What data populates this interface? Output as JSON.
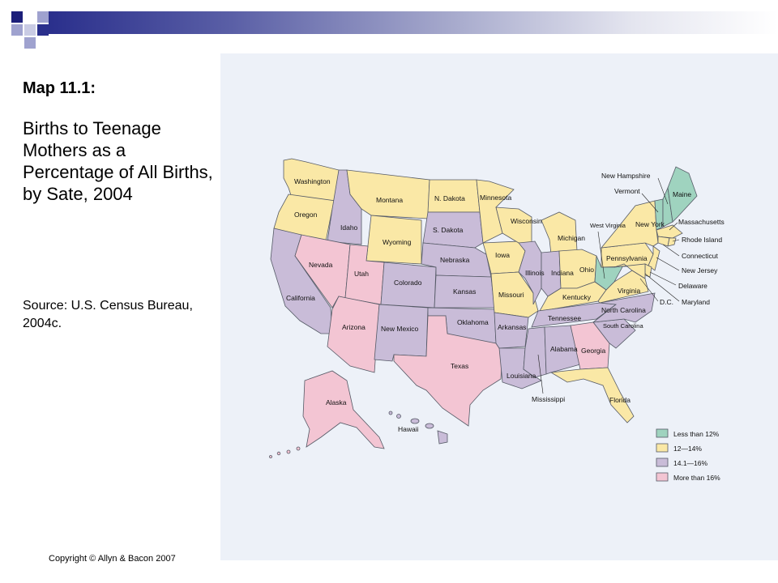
{
  "slide": {
    "title": "Map 11.1:",
    "subtitle": "Births to Teenage Mothers as a Percentage of All Births, by Sate, 2004",
    "source": "Source: U.S. Census Bureau, 2004c.",
    "copyright": "Copyright © Allyn & Bacon 2007"
  },
  "legend": [
    {
      "label": "Less than 12%",
      "color": "#9fd3bf"
    },
    {
      "label": "12—14%",
      "color": "#fae8a6"
    },
    {
      "label": "14.1—16%",
      "color": "#c9bcd8"
    },
    {
      "label": "More than 16%",
      "color": "#f3c5d3"
    }
  ],
  "states": {
    "washington": "Washington",
    "oregon": "Oregon",
    "california": "California",
    "idaho": "Idaho",
    "nevada": "Nevada",
    "montana": "Montana",
    "wyoming": "Wyoming",
    "utah": "Utah",
    "arizona": "Arizona",
    "colorado": "Colorado",
    "new_mexico": "New  Mexico",
    "n_dakota": "N. Dakota",
    "s_dakota": "S. Dakota",
    "nebraska": "Nebraska",
    "kansas": "Kansas",
    "oklahoma": "Oklahoma",
    "texas": "Texas",
    "minnesota": "Minnesota",
    "iowa": "Iowa",
    "missouri": "Missouri",
    "arkansas": "Arkansas",
    "louisiana": "Louisiana",
    "wisconsin": "Wisconsin",
    "illinois": "Illinois",
    "michigan": "Michigan",
    "indiana": "Indiana",
    "ohio": "Ohio",
    "kentucky": "Kentucky",
    "tennessee": "Tennessee",
    "mississippi": "Mississippi",
    "alabama": "Alabama",
    "georgia": "Georgia",
    "florida": "Florida",
    "south_carolina": "South Carolina",
    "north_carolina": "North  Carolina",
    "virginia": "Virginia",
    "west_virginia": "West Virginia",
    "pennsylvania": "Pennsylvania",
    "new_york": "New York",
    "vermont": "Vermont",
    "new_hampshire": "New  Hampshire",
    "maine": "Maine",
    "massachusetts": "Massachusetts",
    "rhode_island": "Rhode  Island",
    "connecticut": "Connecticut",
    "new_jersey": "New  Jersey",
    "delaware": "Delaware",
    "maryland": "Maryland",
    "dc": "D.C.",
    "alaska": "Alaska",
    "hawaii": "Hawaii"
  }
}
